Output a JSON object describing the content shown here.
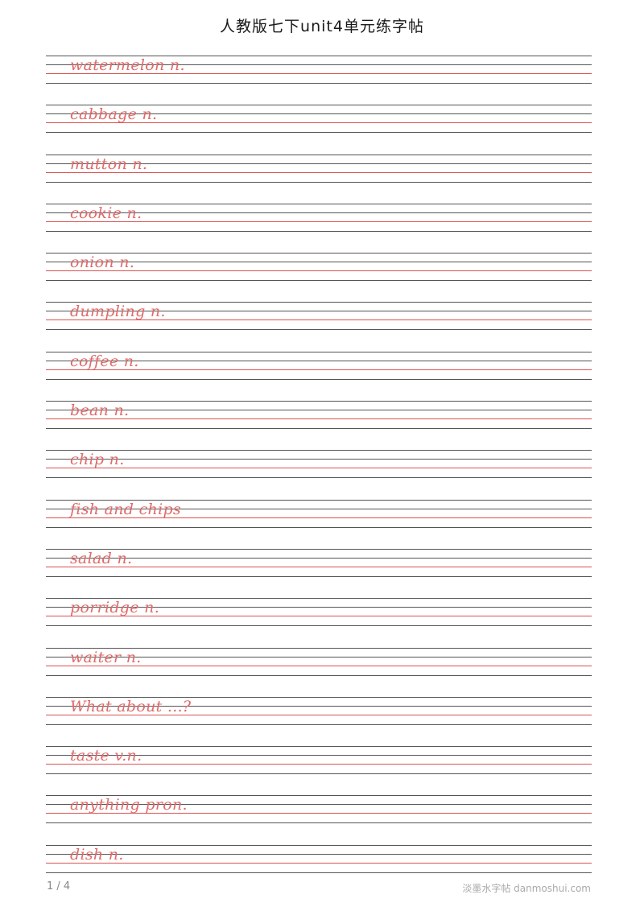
{
  "title": "人教版七下unit4单元练字帖",
  "entries": [
    "watermelon n.",
    "cabbage n.",
    "mutton n.",
    "cookie n.",
    "onion n.",
    "dumpling n.",
    "coffee n.",
    "bean n.",
    "chip n.",
    "fish and chips",
    "salad n.",
    "porridge n.",
    "waiter n.",
    "What about ...?",
    "taste v.n.",
    "anything pron.",
    "dish n."
  ],
  "footer": {
    "page": "1 / 4",
    "brand": "淡墨水字帖 danmoshui.com"
  },
  "colors": {
    "guide_line": "#555555",
    "baseline": "#d9534f",
    "trace_text": "#e06a6a"
  }
}
